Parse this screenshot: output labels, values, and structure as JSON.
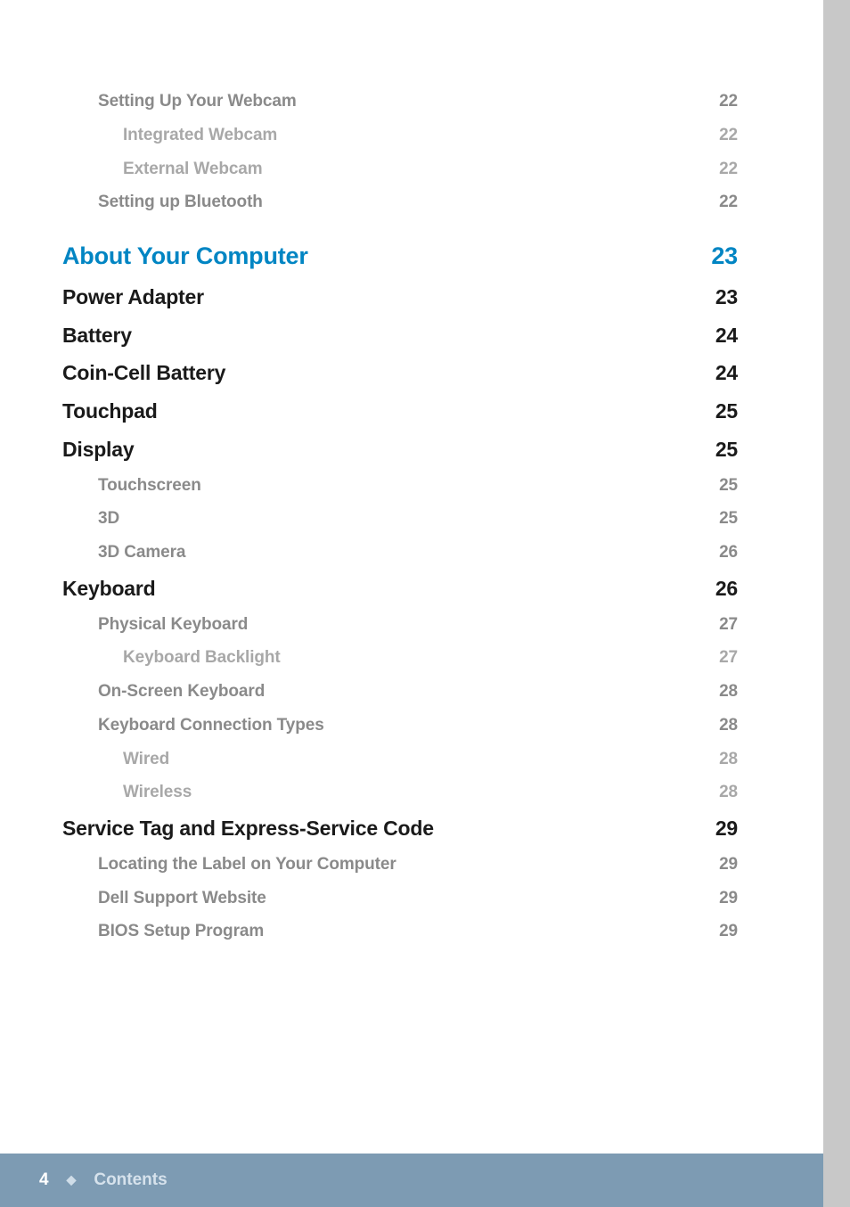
{
  "colors": {
    "page_bg": "#ffffff",
    "outer_bg": "#c8c8c8",
    "footer_bg": "#7d9bb3",
    "footer_text": "#ffffff",
    "footer_label": "#d6e2ec",
    "chapter": "#0085c3",
    "section": "#1a1a1a",
    "sub": "#8a8a8a",
    "subsub": "#a8a8a8"
  },
  "typography": {
    "chapter_pt": 27,
    "section_pt": 23,
    "sub_pt": 19,
    "subsub_pt": 19,
    "footer_pt": 19,
    "font_family": "Segoe UI / Helvetica Neue"
  },
  "toc": [
    {
      "level": "sub",
      "indent": 1,
      "title": "Setting Up Your Webcam",
      "page": "22"
    },
    {
      "level": "subsub",
      "indent": 2,
      "title": "Integrated Webcam",
      "page": "22"
    },
    {
      "level": "subsub",
      "indent": 2,
      "title": "External Webcam",
      "page": "22"
    },
    {
      "level": "sub",
      "indent": 1,
      "title": "Setting up Bluetooth",
      "page": "22"
    },
    {
      "level": "chapter",
      "indent": 0,
      "title": "About Your Computer",
      "page": "23"
    },
    {
      "level": "section",
      "indent": 0,
      "title": "Power Adapter",
      "page": "23"
    },
    {
      "level": "section",
      "indent": 0,
      "title": "Battery",
      "page": "24"
    },
    {
      "level": "section",
      "indent": 0,
      "title": "Coin-Cell Battery",
      "page": "24"
    },
    {
      "level": "section",
      "indent": 0,
      "title": "Touchpad",
      "page": "25"
    },
    {
      "level": "section",
      "indent": 0,
      "title": "Display",
      "page": "25"
    },
    {
      "level": "sub",
      "indent": 1,
      "title": "Touchscreen",
      "page": "25"
    },
    {
      "level": "sub",
      "indent": 1,
      "title": "3D",
      "page": "25"
    },
    {
      "level": "sub",
      "indent": 1,
      "title": "3D Camera",
      "page": "26"
    },
    {
      "level": "section",
      "indent": 0,
      "title": "Keyboard",
      "page": "26"
    },
    {
      "level": "sub",
      "indent": 1,
      "title": "Physical Keyboard",
      "page": "27"
    },
    {
      "level": "subsub",
      "indent": 2,
      "title": "Keyboard Backlight",
      "page": "27"
    },
    {
      "level": "sub",
      "indent": 1,
      "title": "On-Screen Keyboard",
      "page": "28"
    },
    {
      "level": "sub",
      "indent": 1,
      "title": "Keyboard Connection Types",
      "page": "28"
    },
    {
      "level": "subsub",
      "indent": 2,
      "title": "Wired",
      "page": "28"
    },
    {
      "level": "subsub",
      "indent": 2,
      "title": "Wireless",
      "page": "28"
    },
    {
      "level": "section",
      "indent": 0,
      "title": "Service Tag and Express-Service Code",
      "page": "29"
    },
    {
      "level": "sub",
      "indent": 1,
      "title": "Locating the Label on Your Computer",
      "page": "29"
    },
    {
      "level": "sub",
      "indent": 1,
      "title": "Dell Support Website",
      "page": "29"
    },
    {
      "level": "sub",
      "indent": 1,
      "title": "BIOS Setup Program",
      "page": "29"
    }
  ],
  "footer": {
    "page_number": "4",
    "label": "Contents"
  }
}
